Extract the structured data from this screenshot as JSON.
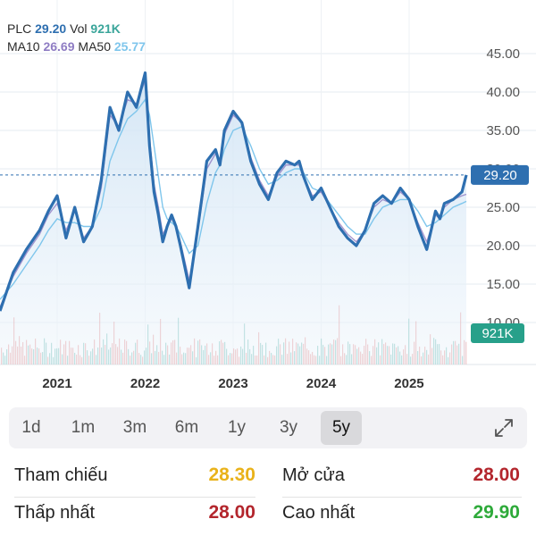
{
  "legend": {
    "symbol": "PLC",
    "price": "29.20",
    "vol_label": "Vol",
    "volume": "921K",
    "ma10_label": "MA10",
    "ma10": "26.69",
    "ma50_label": "MA50",
    "ma50": "25.77"
  },
  "chart_data": {
    "type": "line",
    "x_ticks": [
      "2021",
      "2022",
      "2023",
      "2024",
      "2025"
    ],
    "y_ticks": [
      "45.00",
      "40.00",
      "35.00",
      "30.00",
      "25.00",
      "20.00",
      "15.00",
      "10.00"
    ],
    "ylim": [
      10,
      45
    ],
    "current_price_label": "29.20",
    "current_volume_label": "921K",
    "series": [
      {
        "name": "PLC",
        "x": [
          2020.35,
          2020.5,
          2020.65,
          2020.8,
          2020.9,
          2021.0,
          2021.1,
          2021.2,
          2021.3,
          2021.4,
          2021.5,
          2021.6,
          2021.7,
          2021.8,
          2021.9,
          2022.0,
          2022.05,
          2022.1,
          2022.15,
          2022.2,
          2022.25,
          2022.3,
          2022.35,
          2022.4,
          2022.5,
          2022.6,
          2022.7,
          2022.8,
          2022.85,
          2022.9,
          2023.0,
          2023.1,
          2023.2,
          2023.3,
          2023.4,
          2023.5,
          2023.6,
          2023.7,
          2023.75,
          2023.8,
          2023.9,
          2024.0,
          2024.1,
          2024.2,
          2024.3,
          2024.4,
          2024.5,
          2024.6,
          2024.7,
          2024.8,
          2024.9,
          2025.0,
          2025.1,
          2025.2,
          2025.3,
          2025.35,
          2025.4,
          2025.5,
          2025.6,
          2025.65
        ],
        "values": [
          11.5,
          16.5,
          19.5,
          22.0,
          24.5,
          26.5,
          21.0,
          25.0,
          20.5,
          22.5,
          28.5,
          38.0,
          35.0,
          40.0,
          38.0,
          42.5,
          33.0,
          27.0,
          24.0,
          20.5,
          22.5,
          24.0,
          22.5,
          20.0,
          14.5,
          22.5,
          31.0,
          32.5,
          30.5,
          35.0,
          37.5,
          36.0,
          31.0,
          28.0,
          26.0,
          29.5,
          31.0,
          30.5,
          31.0,
          29.0,
          26.0,
          27.5,
          25.0,
          22.5,
          21.0,
          20.0,
          22.0,
          25.5,
          26.5,
          25.5,
          27.5,
          26.0,
          22.5,
          19.5,
          24.5,
          23.5,
          25.5,
          26.0,
          27.0,
          29.2
        ]
      },
      {
        "name": "MA10",
        "x": [
          2020.35,
          2020.5,
          2020.65,
          2020.8,
          2020.9,
          2021.0,
          2021.1,
          2021.2,
          2021.3,
          2021.4,
          2021.5,
          2021.6,
          2021.7,
          2021.8,
          2021.9,
          2022.0,
          2022.05,
          2022.1,
          2022.15,
          2022.2,
          2022.25,
          2022.3,
          2022.35,
          2022.4,
          2022.5,
          2022.6,
          2022.7,
          2022.8,
          2022.85,
          2022.9,
          2023.0,
          2023.1,
          2023.2,
          2023.3,
          2023.4,
          2023.5,
          2023.6,
          2023.7,
          2023.75,
          2023.8,
          2023.9,
          2024.0,
          2024.1,
          2024.2,
          2024.3,
          2024.4,
          2024.5,
          2024.6,
          2024.7,
          2024.8,
          2024.9,
          2025.0,
          2025.1,
          2025.2,
          2025.3,
          2025.35,
          2025.4,
          2025.5,
          2025.6,
          2025.65
        ],
        "values": [
          12.0,
          16.0,
          19.0,
          21.5,
          24.0,
          25.5,
          22.0,
          24.5,
          21.0,
          22.5,
          27.5,
          37.0,
          35.5,
          39.0,
          38.5,
          41.5,
          34.0,
          28.0,
          25.0,
          21.5,
          22.5,
          23.5,
          22.5,
          20.5,
          15.5,
          22.0,
          30.0,
          32.0,
          31.0,
          34.5,
          37.0,
          36.0,
          31.5,
          28.5,
          26.5,
          29.0,
          30.5,
          30.5,
          30.5,
          29.0,
          26.5,
          27.0,
          25.0,
          23.0,
          21.5,
          20.5,
          22.0,
          25.0,
          26.0,
          25.5,
          27.0,
          26.0,
          23.0,
          20.5,
          24.0,
          23.5,
          25.0,
          26.0,
          26.5,
          26.69
        ]
      },
      {
        "name": "MA50",
        "x": [
          2020.35,
          2020.5,
          2020.65,
          2020.8,
          2020.9,
          2021.0,
          2021.1,
          2021.2,
          2021.3,
          2021.4,
          2021.5,
          2021.6,
          2021.7,
          2021.8,
          2021.9,
          2022.0,
          2022.05,
          2022.1,
          2022.15,
          2022.2,
          2022.25,
          2022.3,
          2022.35,
          2022.4,
          2022.5,
          2022.6,
          2022.7,
          2022.8,
          2022.85,
          2022.9,
          2023.0,
          2023.1,
          2023.2,
          2023.3,
          2023.4,
          2023.5,
          2023.6,
          2023.7,
          2023.75,
          2023.8,
          2023.9,
          2024.0,
          2024.1,
          2024.2,
          2024.3,
          2024.4,
          2024.5,
          2024.6,
          2024.7,
          2024.8,
          2024.9,
          2025.0,
          2025.1,
          2025.2,
          2025.3,
          2025.35,
          2025.4,
          2025.5,
          2025.6,
          2025.65
        ],
        "values": [
          13.0,
          15.0,
          17.5,
          20.0,
          22.0,
          23.5,
          23.0,
          23.0,
          22.5,
          22.5,
          25.0,
          31.0,
          34.0,
          36.5,
          37.5,
          39.0,
          37.0,
          33.0,
          29.0,
          25.0,
          23.5,
          23.0,
          22.5,
          21.5,
          19.0,
          20.0,
          25.5,
          29.5,
          30.5,
          32.5,
          35.0,
          35.5,
          33.0,
          30.0,
          28.0,
          28.5,
          29.5,
          30.0,
          30.0,
          29.5,
          27.5,
          27.0,
          25.5,
          24.0,
          22.5,
          21.5,
          21.5,
          23.5,
          25.0,
          25.5,
          26.0,
          26.0,
          24.5,
          22.5,
          23.0,
          23.5,
          24.0,
          25.0,
          25.5,
          25.77
        ]
      }
    ]
  },
  "periods": [
    {
      "label": "1d",
      "active": false
    },
    {
      "label": "1m",
      "active": false
    },
    {
      "label": "3m",
      "active": false
    },
    {
      "label": "6m",
      "active": false
    },
    {
      "label": "1y",
      "active": false
    },
    {
      "label": "3y",
      "active": false
    },
    {
      "label": "5y",
      "active": true
    }
  ],
  "stats": {
    "reference_label": "Tham chiếu",
    "reference": "28.30",
    "open_label": "Mở cửa",
    "open": "28.00",
    "low_label": "Thấp nhất",
    "low": "28.00",
    "high_label": "Cao nhất",
    "high": "29.90"
  },
  "colors": {
    "price_line": "#2e6fb0",
    "ma10": "#8e7cc3",
    "ma50": "#7fc6ec",
    "reference": "#e9b21a",
    "down": "#b3262d",
    "up": "#2eaa3a",
    "volume_up": "#3aa59a",
    "volume_down": "#e06a6a"
  }
}
